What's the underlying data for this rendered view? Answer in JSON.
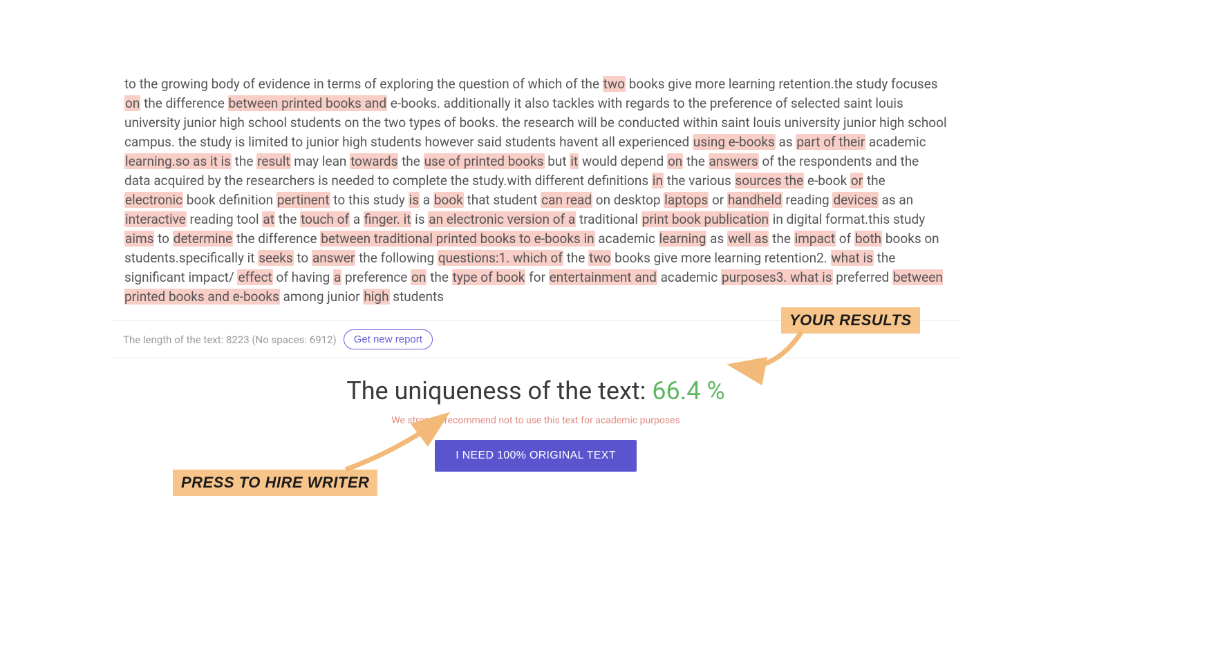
{
  "segments": [
    {
      "t": "to the growing body of evidence in terms of exploring the question of which of the ",
      "h": false
    },
    {
      "t": "two",
      "h": true
    },
    {
      "t": " books give more learning retention.the study focuses ",
      "h": false
    },
    {
      "t": "on",
      "h": true
    },
    {
      "t": " the difference ",
      "h": false
    },
    {
      "t": "between printed books and",
      "h": true
    },
    {
      "t": " e-books. additionally it also tackles with regards to the preference of selected saint louis university junior high school students on the two types of books. the research will be conducted within saint louis university junior high school campus. the study is limited to junior high students however said students havent all experienced ",
      "h": false
    },
    {
      "t": "using e-books",
      "h": true
    },
    {
      "t": " as ",
      "h": false
    },
    {
      "t": "part of their",
      "h": true
    },
    {
      "t": " academic ",
      "h": false
    },
    {
      "t": "learning.so as it is",
      "h": true
    },
    {
      "t": " the ",
      "h": false
    },
    {
      "t": "result",
      "h": true
    },
    {
      "t": " may lean ",
      "h": false
    },
    {
      "t": "towards",
      "h": true
    },
    {
      "t": " the ",
      "h": false
    },
    {
      "t": "use of printed books",
      "h": true
    },
    {
      "t": " but ",
      "h": false
    },
    {
      "t": "it",
      "h": true
    },
    {
      "t": " would depend ",
      "h": false
    },
    {
      "t": "on",
      "h": true
    },
    {
      "t": " the ",
      "h": false
    },
    {
      "t": "answers",
      "h": true
    },
    {
      "t": " of the respondents and the data acquired by the researchers is needed to complete the study.with different definitions ",
      "h": false
    },
    {
      "t": "in",
      "h": true
    },
    {
      "t": " the various ",
      "h": false
    },
    {
      "t": "sources the",
      "h": true
    },
    {
      "t": " e-book ",
      "h": false
    },
    {
      "t": "or",
      "h": true
    },
    {
      "t": " the ",
      "h": false
    },
    {
      "t": "electronic",
      "h": true
    },
    {
      "t": " book definition ",
      "h": false
    },
    {
      "t": "pertinent",
      "h": true
    },
    {
      "t": " to this study ",
      "h": false
    },
    {
      "t": "is",
      "h": true
    },
    {
      "t": " a ",
      "h": false
    },
    {
      "t": "book",
      "h": true
    },
    {
      "t": " that student ",
      "h": false
    },
    {
      "t": "can read",
      "h": true
    },
    {
      "t": " on desktop ",
      "h": false
    },
    {
      "t": "laptops",
      "h": true
    },
    {
      "t": " or ",
      "h": false
    },
    {
      "t": "handheld",
      "h": true
    },
    {
      "t": " reading ",
      "h": false
    },
    {
      "t": "devices",
      "h": true
    },
    {
      "t": " as an ",
      "h": false
    },
    {
      "t": "interactive",
      "h": true
    },
    {
      "t": " reading tool ",
      "h": false
    },
    {
      "t": "at",
      "h": true
    },
    {
      "t": " the ",
      "h": false
    },
    {
      "t": "touch of",
      "h": true
    },
    {
      "t": " a ",
      "h": false
    },
    {
      "t": "finger. it",
      "h": true
    },
    {
      "t": " is ",
      "h": false
    },
    {
      "t": "an electronic version of a",
      "h": true
    },
    {
      "t": " traditional ",
      "h": false
    },
    {
      "t": "print book publication",
      "h": true
    },
    {
      "t": " in digital format.this study ",
      "h": false
    },
    {
      "t": "aims",
      "h": true
    },
    {
      "t": " to ",
      "h": false
    },
    {
      "t": "determine",
      "h": true
    },
    {
      "t": " the difference ",
      "h": false
    },
    {
      "t": "between traditional printed books to e-books in",
      "h": true
    },
    {
      "t": " academic ",
      "h": false
    },
    {
      "t": "learning",
      "h": true
    },
    {
      "t": " as ",
      "h": false
    },
    {
      "t": "well as",
      "h": true
    },
    {
      "t": " the ",
      "h": false
    },
    {
      "t": "impact",
      "h": true
    },
    {
      "t": " of ",
      "h": false
    },
    {
      "t": "both",
      "h": true
    },
    {
      "t": " books on students.specifically it ",
      "h": false
    },
    {
      "t": "seeks",
      "h": true
    },
    {
      "t": " to ",
      "h": false
    },
    {
      "t": "answer",
      "h": true
    },
    {
      "t": " the following ",
      "h": false
    },
    {
      "t": "questions:1. which of",
      "h": true
    },
    {
      "t": " the ",
      "h": false
    },
    {
      "t": "two",
      "h": true
    },
    {
      "t": " books give more learning retention2. ",
      "h": false
    },
    {
      "t": "what is",
      "h": true
    },
    {
      "t": " the significant impact/ ",
      "h": false
    },
    {
      "t": "effect",
      "h": true
    },
    {
      "t": " of having ",
      "h": false
    },
    {
      "t": "a",
      "h": true
    },
    {
      "t": " preference ",
      "h": false
    },
    {
      "t": "on",
      "h": true
    },
    {
      "t": " the ",
      "h": false
    },
    {
      "t": "type of book",
      "h": true
    },
    {
      "t": " for ",
      "h": false
    },
    {
      "t": "entertainment and",
      "h": true
    },
    {
      "t": " academic ",
      "h": false
    },
    {
      "t": "purposes3. what is",
      "h": true
    },
    {
      "t": " preferred ",
      "h": false
    },
    {
      "t": "between printed books and e-books",
      "h": true
    },
    {
      "t": " among junior ",
      "h": false
    },
    {
      "t": "high",
      "h": true
    },
    {
      "t": " students",
      "h": false
    }
  ],
  "meta": {
    "length_label": "The length of the text: 8223 (No spaces: 6912)",
    "new_report_label": "Get new report"
  },
  "result": {
    "uniqueness_label": "The uniqueness of the text: ",
    "uniqueness_pct": "66.4 %",
    "warning": "We strongly recommend not to use this text for academic purposes",
    "cta_label": "I NEED 100% ORIGINAL TEXT"
  },
  "annotations": {
    "results_label": "YOUR RESULTS",
    "hire_label": "PRESS TO HIRE WRITER",
    "arrow_color": "#f2b978"
  }
}
